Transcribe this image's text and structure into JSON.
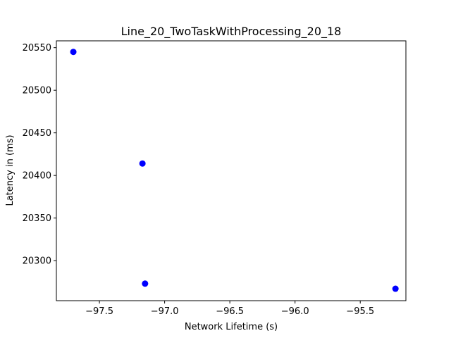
{
  "chart_data": {
    "type": "scatter",
    "title": "Line_20_TwoTaskWithProcessing_20_18",
    "xlabel": "Network Lifetime (s)",
    "ylabel": "Latency in (ms)",
    "xlim": [
      -97.83,
      -95.15
    ],
    "ylim": [
      20253,
      20558
    ],
    "x_ticks": [
      -97.5,
      -97.0,
      -96.5,
      -96.0,
      -95.5
    ],
    "x_tick_labels": [
      "−97.5",
      "−97.0",
      "−96.5",
      "−96.0",
      "−95.5"
    ],
    "y_ticks": [
      20300,
      20350,
      20400,
      20450,
      20500,
      20550
    ],
    "y_tick_labels": [
      "20300",
      "20350",
      "20400",
      "20450",
      "20500",
      "20550"
    ],
    "grid": false,
    "marker_color": "#0000ff",
    "series": [
      {
        "x": [
          -97.7,
          -97.17,
          -97.15,
          -95.23
        ],
        "y": [
          20545,
          20414,
          20273,
          20267
        ]
      }
    ]
  }
}
